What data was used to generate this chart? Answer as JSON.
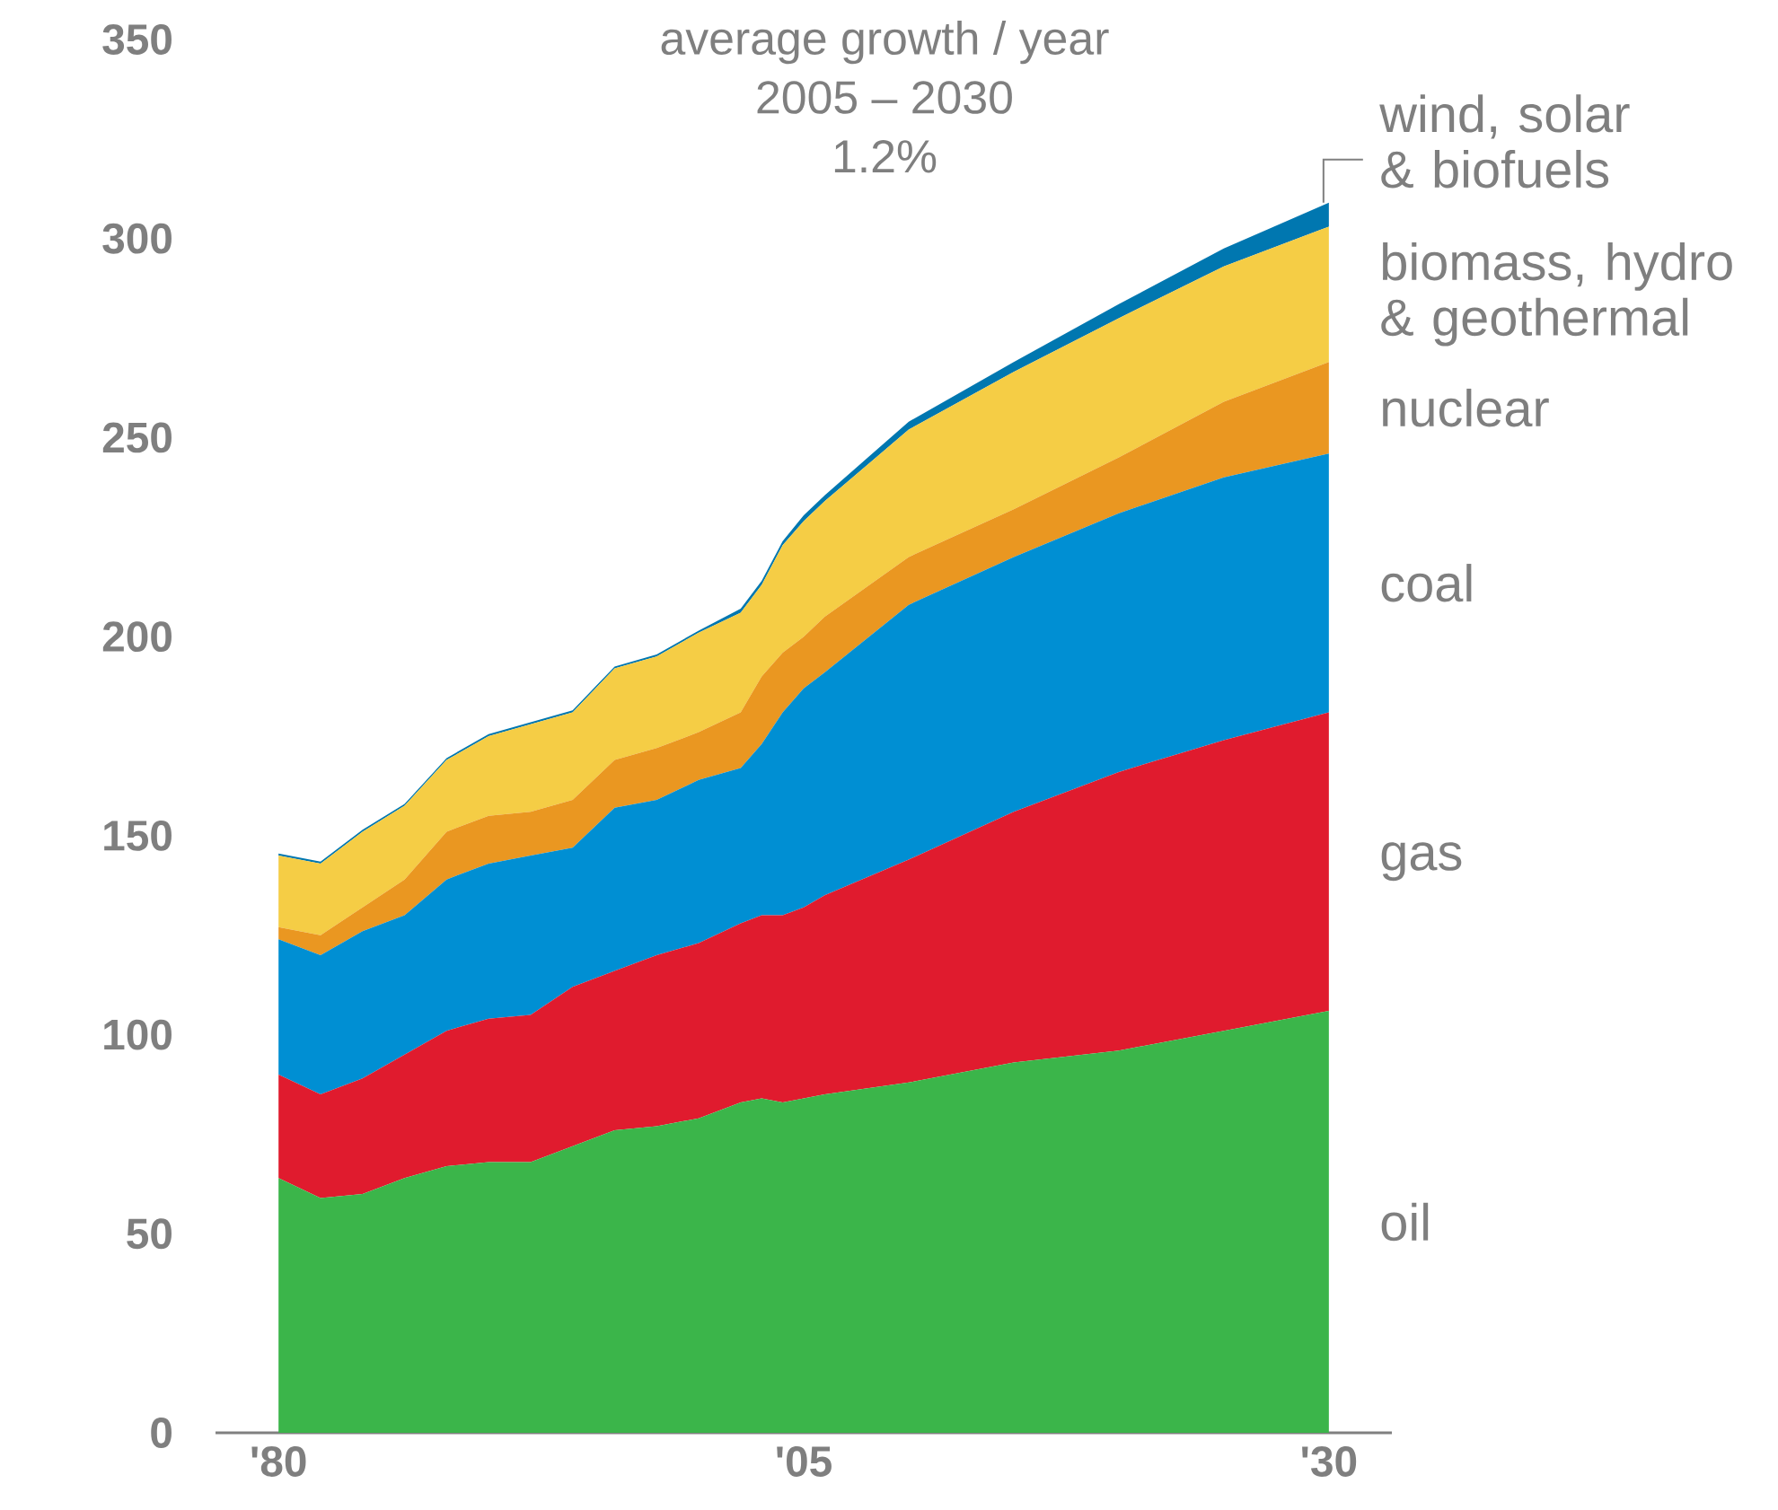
{
  "chart_data": {
    "type": "area",
    "stacked": true,
    "title": "average growth / year",
    "subtitle": "2005 – 2030",
    "annotations": [
      "1.2%"
    ],
    "x": [
      1980,
      1982,
      1984,
      1986,
      1988,
      1990,
      1992,
      1994,
      1996,
      1998,
      2000,
      2002,
      2003,
      2004,
      2005,
      2006,
      2010,
      2015,
      2020,
      2025,
      2030
    ],
    "series": [
      {
        "name": "oil",
        "color": "#3bb54a",
        "values": [
          64,
          59,
          60,
          64,
          67,
          68,
          68,
          72,
          76,
          77,
          79,
          83,
          84,
          83,
          84,
          85,
          88,
          93,
          96,
          101,
          106
        ]
      },
      {
        "name": "gas",
        "color": "#e01b2e",
        "values": [
          26,
          26,
          29,
          31,
          34,
          36,
          37,
          40,
          40,
          43,
          44,
          45,
          46,
          47,
          48,
          50,
          56,
          63,
          70,
          73,
          75
        ]
      },
      {
        "name": "coal",
        "color": "#008fd3",
        "values": [
          34,
          35,
          37,
          35,
          38,
          39,
          40,
          35,
          41,
          39,
          41,
          39,
          43,
          51,
          55,
          56,
          64,
          64,
          65,
          66,
          65
        ]
      },
      {
        "name": "nuclear",
        "color": "#ea9721",
        "values": [
          3,
          5,
          6,
          9,
          12,
          12,
          11,
          12,
          12,
          13,
          12,
          14,
          17,
          15,
          13,
          14,
          12,
          12,
          14,
          19,
          23
        ]
      },
      {
        "name": "biomass, hydro & geothermal",
        "color": "#f5cd45",
        "values": [
          18,
          18,
          19,
          18.5,
          18,
          20,
          22,
          22,
          23,
          23,
          25,
          25,
          23,
          27,
          29,
          29,
          32,
          34.5,
          35,
          34,
          34
        ]
      },
      {
        "name": "wind, solar & biofuels",
        "color": "#0077b0",
        "values": [
          0.5,
          0.5,
          0.5,
          0.5,
          0.5,
          0.5,
          0.5,
          0.5,
          0.5,
          0.5,
          0.5,
          1,
          1,
          1,
          1.5,
          1.5,
          2,
          2.5,
          3.5,
          4.5,
          6
        ]
      }
    ],
    "xlim": [
      1977,
      2033
    ],
    "ylim": [
      0,
      350
    ],
    "xticks": [
      {
        "value": 1980,
        "label": "'80"
      },
      {
        "value": 2005,
        "label": "'05"
      },
      {
        "value": 2030,
        "label": "'30"
      }
    ],
    "yticks": [
      0,
      50,
      100,
      150,
      200,
      250,
      300,
      350
    ],
    "grid": false,
    "legend": false
  }
}
